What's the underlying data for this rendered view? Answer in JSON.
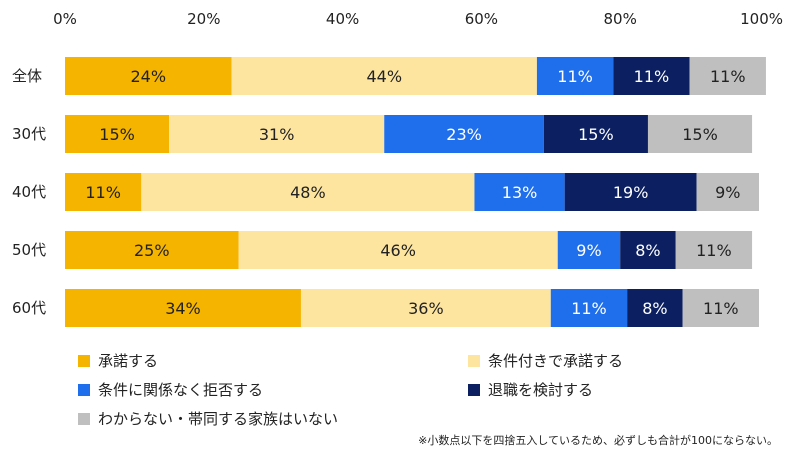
{
  "chart_data": {
    "type": "bar",
    "orientation": "horizontal",
    "stacked": true,
    "xlim": [
      0,
      100
    ],
    "x_ticks": [
      "0%",
      "20%",
      "40%",
      "60%",
      "80%",
      "100%"
    ],
    "categories": [
      "全体",
      "30代",
      "40代",
      "50代",
      "60代"
    ],
    "series": [
      {
        "name": "承諾する",
        "color": "#F5B400",
        "text_color": "#222222",
        "values": [
          24,
          15,
          11,
          25,
          34
        ],
        "labels": [
          "24%",
          "15%",
          "11%",
          "25%",
          "34%"
        ]
      },
      {
        "name": "条件付きで承諾する",
        "color": "#FDE5A0",
        "text_color": "#222222",
        "values": [
          44,
          31,
          48,
          46,
          36
        ],
        "labels": [
          "44%",
          "31%",
          "48%",
          "46%",
          "36%"
        ]
      },
      {
        "name": "条件に関係なく拒否する",
        "color": "#1F6EEB",
        "text_color": "#FFFFFF",
        "values": [
          11,
          23,
          13,
          9,
          11
        ],
        "labels": [
          "11%",
          "23%",
          "13%",
          "9%",
          "11%"
        ]
      },
      {
        "name": "退職を検討する",
        "color": "#0C2061",
        "text_color": "#FFFFFF",
        "values": [
          11,
          15,
          19,
          8,
          8
        ],
        "labels": [
          "11%",
          "15%",
          "19%",
          "8%",
          "8%"
        ]
      },
      {
        "name": "わからない・帯同する家族はいない",
        "color": "#BFBFBF",
        "text_color": "#222222",
        "values": [
          11,
          15,
          9,
          11,
          11
        ],
        "labels": [
          "11%",
          "15%",
          "9%",
          "11%",
          "11%"
        ]
      }
    ],
    "legend_position": "bottom",
    "grid": false,
    "note": "※小数点以下を四捨五入しているため、必ずしも合計が100にならない。"
  }
}
